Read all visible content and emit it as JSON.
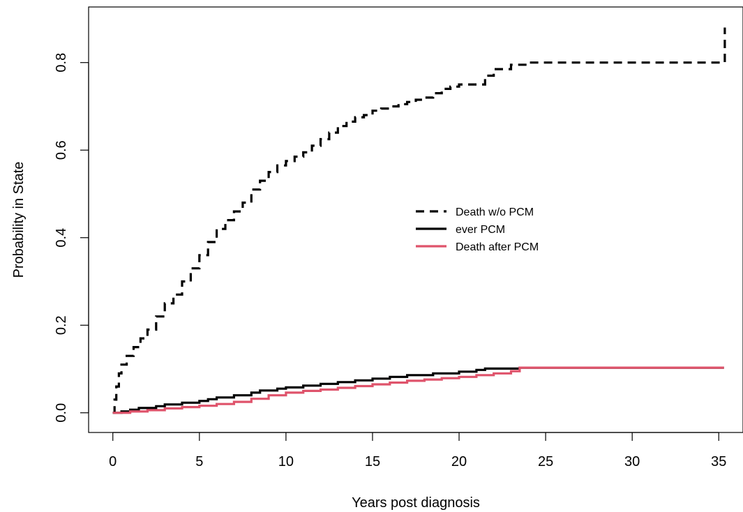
{
  "chart_data": {
    "type": "line",
    "step": true,
    "xlabel": "Years post diagnosis",
    "ylabel": "Probability in State",
    "xlim": [
      -1.4,
      36.4
    ],
    "ylim": [
      -0.045,
      0.927
    ],
    "x_ticks": [
      0,
      5,
      10,
      15,
      20,
      25,
      30,
      35
    ],
    "x_tick_labels": [
      "0",
      "5",
      "10",
      "15",
      "20",
      "25",
      "30",
      "35"
    ],
    "y_ticks": [
      0.0,
      0.2,
      0.4,
      0.6,
      0.8
    ],
    "y_tick_labels": [
      "0.0",
      "0.2",
      "0.4",
      "0.6",
      "0.8"
    ],
    "grid": false,
    "legend_position": "center-right",
    "series": [
      {
        "name": "Death w/o PCM",
        "color": "#000000",
        "dash": "dashed",
        "x": [
          0,
          0.1,
          0.2,
          0.35,
          0.5,
          0.8,
          1.2,
          1.6,
          2.0,
          2.5,
          3.0,
          3.5,
          4.0,
          4.5,
          5.0,
          5.5,
          6.0,
          6.5,
          7.0,
          7.5,
          8.0,
          8.5,
          9.0,
          9.5,
          10.0,
          10.5,
          11.0,
          11.5,
          12.0,
          12.5,
          13.0,
          13.5,
          14.0,
          14.5,
          15.0,
          15.5,
          16.0,
          16.5,
          17.0,
          17.5,
          18.0,
          18.5,
          19.0,
          19.5,
          20.0,
          21.0,
          21.5,
          22.0,
          23.0,
          24.0,
          26.0,
          28.0,
          30.0,
          32.0,
          34.0,
          35.3,
          35.35
        ],
        "y": [
          0,
          0.03,
          0.06,
          0.09,
          0.11,
          0.13,
          0.15,
          0.17,
          0.19,
          0.22,
          0.25,
          0.27,
          0.3,
          0.33,
          0.36,
          0.39,
          0.42,
          0.44,
          0.46,
          0.48,
          0.51,
          0.53,
          0.55,
          0.565,
          0.575,
          0.585,
          0.595,
          0.61,
          0.625,
          0.64,
          0.655,
          0.665,
          0.675,
          0.68,
          0.69,
          0.695,
          0.7,
          0.705,
          0.71,
          0.715,
          0.72,
          0.73,
          0.74,
          0.745,
          0.75,
          0.75,
          0.77,
          0.785,
          0.795,
          0.8,
          0.8,
          0.8,
          0.8,
          0.8,
          0.8,
          0.8,
          0.88
        ]
      },
      {
        "name": "ever PCM",
        "color": "#000000",
        "dash": "solid",
        "x": [
          0,
          0.5,
          1.0,
          1.5,
          2.5,
          3.0,
          4.0,
          5.0,
          5.5,
          6.0,
          7.0,
          8.0,
          8.5,
          9.5,
          10.0,
          11.0,
          12.0,
          13.0,
          14.0,
          15.0,
          16.0,
          17.0,
          18.5,
          20.0,
          21.0,
          21.5,
          23.5,
          25.0,
          30.0,
          35.3
        ],
        "y": [
          0,
          0.003,
          0.007,
          0.011,
          0.015,
          0.019,
          0.023,
          0.027,
          0.031,
          0.035,
          0.04,
          0.046,
          0.051,
          0.055,
          0.058,
          0.062,
          0.066,
          0.07,
          0.074,
          0.078,
          0.082,
          0.086,
          0.09,
          0.094,
          0.098,
          0.101,
          0.103,
          0.103,
          0.103,
          0.103
        ]
      },
      {
        "name": "Death after PCM",
        "color": "#DF536B",
        "dash": "solid",
        "x": [
          0,
          1.0,
          2.0,
          3.0,
          4.0,
          5.0,
          6.0,
          7.0,
          8.0,
          9.0,
          10.0,
          11.0,
          12.0,
          13.0,
          14.0,
          15.0,
          16.0,
          17.0,
          18.0,
          19.0,
          20.0,
          21.0,
          22.0,
          23.0,
          23.5,
          25.0,
          30.0,
          35.3
        ],
        "y": [
          0,
          0.003,
          0.006,
          0.01,
          0.013,
          0.016,
          0.02,
          0.025,
          0.032,
          0.04,
          0.046,
          0.05,
          0.053,
          0.057,
          0.061,
          0.065,
          0.069,
          0.073,
          0.076,
          0.079,
          0.082,
          0.086,
          0.09,
          0.095,
          0.103,
          0.103,
          0.103,
          0.103
        ]
      }
    ]
  }
}
